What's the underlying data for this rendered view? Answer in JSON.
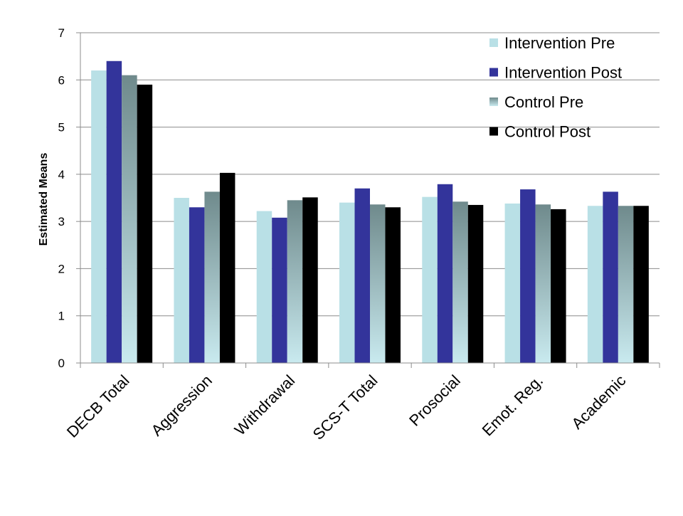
{
  "chart_data": {
    "type": "bar",
    "ylabel": "Estimated Means",
    "ylim": [
      0,
      7
    ],
    "yticks": [
      0,
      1,
      2,
      3,
      4,
      5,
      6,
      7
    ],
    "grid": true,
    "legend_position": "top-right",
    "categories": [
      "DECB Total",
      "Aggression",
      "Withdrawal",
      "SCS-T Total",
      "Prosocial",
      "Emot. Reg.",
      "Academic"
    ],
    "series": [
      {
        "name": "Intervention Pre",
        "color": "#b9e0e6",
        "values": [
          6.2,
          3.5,
          3.22,
          3.4,
          3.52,
          3.38,
          3.33
        ]
      },
      {
        "name": "Intervention Post",
        "color": "#33349b",
        "values": [
          6.4,
          3.3,
          3.08,
          3.7,
          3.79,
          3.68,
          3.63
        ]
      },
      {
        "name": "Control Pre",
        "color": "#7f9a9c",
        "gradient": true,
        "values": [
          6.1,
          3.63,
          3.45,
          3.36,
          3.42,
          3.36,
          3.33
        ]
      },
      {
        "name": "Control Post",
        "color": "#000000",
        "values": [
          5.9,
          4.03,
          3.51,
          3.3,
          3.35,
          3.26,
          3.33
        ]
      }
    ]
  }
}
